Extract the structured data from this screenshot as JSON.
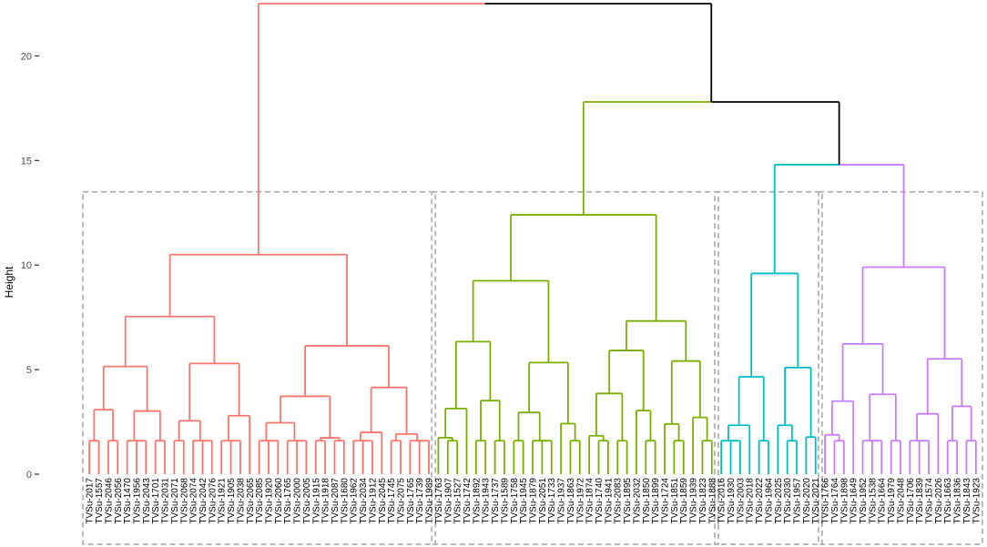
{
  "chart_data": {
    "type": "dendrogram",
    "ylabel": "Height",
    "ylim": [
      0,
      22.5
    ],
    "yticks": [
      0,
      5,
      10,
      15,
      20
    ],
    "grid": false,
    "colors": {
      "root": "#000000",
      "clusters": [
        "#F8766D",
        "#7CAE00",
        "#00BFC4",
        "#C77CFF"
      ],
      "box": "#b3b3b3"
    },
    "clusters": [
      {
        "color_index": 0,
        "height": 10.5,
        "leaves": [
          "TVSu-2017",
          "TVSu-1557",
          "TVSu-2046",
          "TVSu-2056",
          "TVSu-1470",
          "TVSu-1956",
          "TVSu-2043",
          "TVSu-1701",
          "TVSu-2031",
          "TVSu-2071",
          "TVSu-2068",
          "TVSu-2074",
          "TVSu-2042",
          "TVSu-2076",
          "TVSu-1921",
          "TVSu-1905",
          "TVSu-2038",
          "TVSu-2065",
          "TVSu-2085",
          "TVSu-1920",
          "TVSu-2060",
          "TVSu-1765",
          "TVSu-2000",
          "TVSu-2005",
          "TVSu-1915",
          "TVSu-1918",
          "TVSu-2087",
          "TVSu-1680",
          "TVSu-1962",
          "TVSu-2034",
          "TVSu-1912",
          "TVSu-2045",
          "TVSu-1745",
          "TVSu-2075",
          "TVSu-1765",
          "TVSu-1739",
          "TVSu-1989"
        ]
      },
      {
        "color_index": 1,
        "height": 12.4,
        "leaves": [
          "TVSu-1763",
          "TVSu-1907",
          "TVSu-1527",
          "TVSu-1742",
          "TVSu-1892",
          "TVSu-1943",
          "TVSu-1737",
          "TVSu-1589",
          "TVSu-1758",
          "TVSu-1945",
          "TVSu-1879",
          "TVSu-2051",
          "TVSu-1733",
          "TVSu-1937",
          "TVSu-1863",
          "TVSu-1972",
          "TVSu-1874",
          "TVSu-1740",
          "TVSu-1941",
          "TVSu-2083",
          "TVSu-1895",
          "TVSu-2032",
          "TVSu-1850",
          "TVSu-1899",
          "TVSu-1724",
          "TVSu-1851",
          "TVSu-1859",
          "TVSu-1939",
          "TVSu-1823",
          "TVSu-1888"
        ]
      },
      {
        "color_index": 2,
        "height": 9.6,
        "leaves": [
          "TVSu-2016",
          "TVSu-1930",
          "TVSu-2003",
          "TVSu-2018",
          "TVSu-2022",
          "TVSu-1964",
          "TVSu-2025",
          "TVSu-2030",
          "TVSu-1957",
          "TVSu-2020",
          "TVSu-2021"
        ]
      },
      {
        "color_index": 3,
        "height": 9.9,
        "leaves": [
          "TVSu-1766",
          "TVSu-1764",
          "TVSu-1898",
          "TVSu-1649",
          "TVSu-1952",
          "TVSu-1538",
          "TVSu-1664",
          "TVSu-1979",
          "TVSu-2048",
          "TVSu-1706",
          "TVSu-1839",
          "TVSu-1574",
          "TVSu-2026",
          "TVSu-1663",
          "TVSu-1836",
          "TVSu-1843",
          "TVSu-1923"
        ]
      }
    ],
    "top_merges": [
      {
        "height": 14.8,
        "joins": [
          "cluster3",
          "cluster4"
        ]
      },
      {
        "height": 17.8,
        "joins": [
          "cluster2",
          "cluster3+4"
        ]
      },
      {
        "height": 22.5,
        "joins": [
          "cluster1",
          "cluster2+3+4"
        ]
      }
    ]
  }
}
